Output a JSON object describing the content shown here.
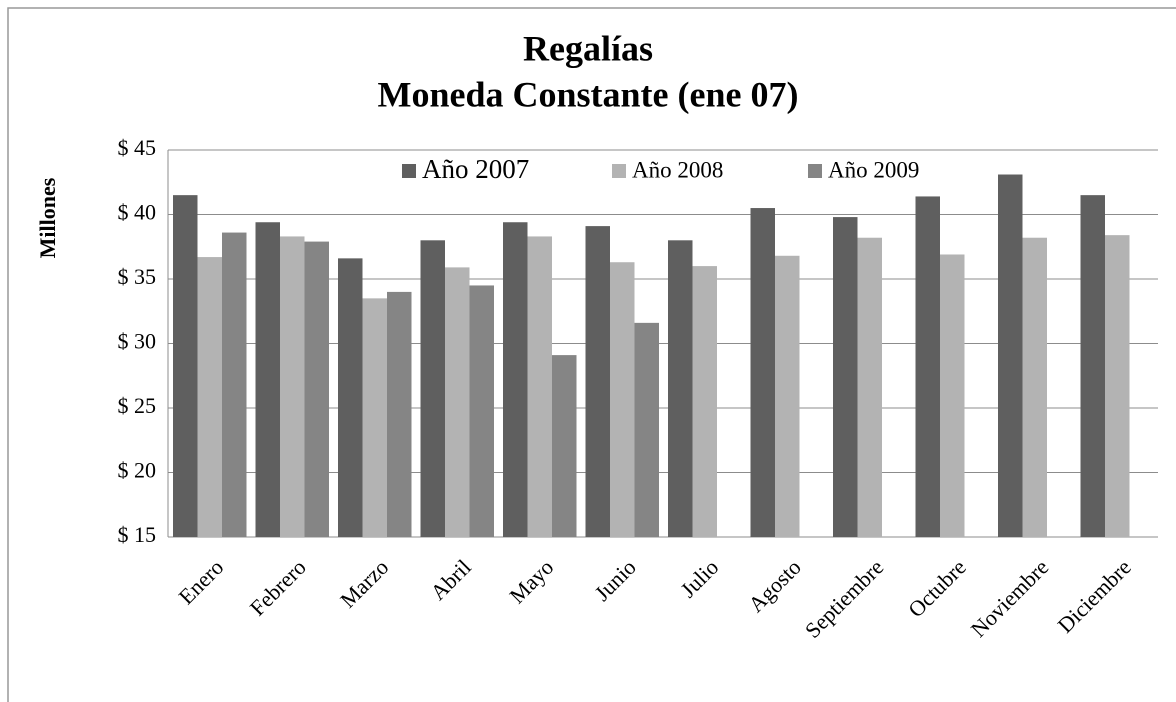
{
  "chart_data": {
    "type": "bar",
    "title": [
      "Regalías",
      "Moneda Constante (ene 07)"
    ],
    "y_label": "Millones",
    "categories": [
      "Enero",
      "Febrero",
      "Marzo",
      "Abril",
      "Mayo",
      "Junio",
      "Julio",
      "Agosto",
      "Septiembre",
      "Octubre",
      "Noviembre",
      "Diciembre"
    ],
    "series": [
      {
        "name": "Año 2007",
        "color": "#5f5f5f",
        "values": [
          41.5,
          39.4,
          36.6,
          38.0,
          39.4,
          39.1,
          38.0,
          40.5,
          39.8,
          41.4,
          43.1,
          41.5
        ]
      },
      {
        "name": "Año 2008",
        "color": "#b3b3b3",
        "values": [
          36.7,
          38.3,
          33.5,
          35.9,
          38.3,
          36.3,
          36.0,
          36.8,
          38.2,
          36.9,
          38.2,
          38.4
        ]
      },
      {
        "name": "Año 2009",
        "color": "#858585",
        "values": [
          38.6,
          37.9,
          34.0,
          34.5,
          29.1,
          31.6,
          null,
          null,
          null,
          null,
          null,
          null
        ]
      }
    ],
    "ylim": [
      15,
      45
    ],
    "yticks": [
      {
        "value": 15,
        "label": "$ 15"
      },
      {
        "value": 20,
        "label": "$ 20"
      },
      {
        "value": 25,
        "label": "$ 25"
      },
      {
        "value": 30,
        "label": "$ 30"
      },
      {
        "value": 35,
        "label": "$ 35"
      },
      {
        "value": 40,
        "label": "$ 40"
      },
      {
        "value": 45,
        "label": "$ 45"
      }
    ],
    "grid": true
  }
}
